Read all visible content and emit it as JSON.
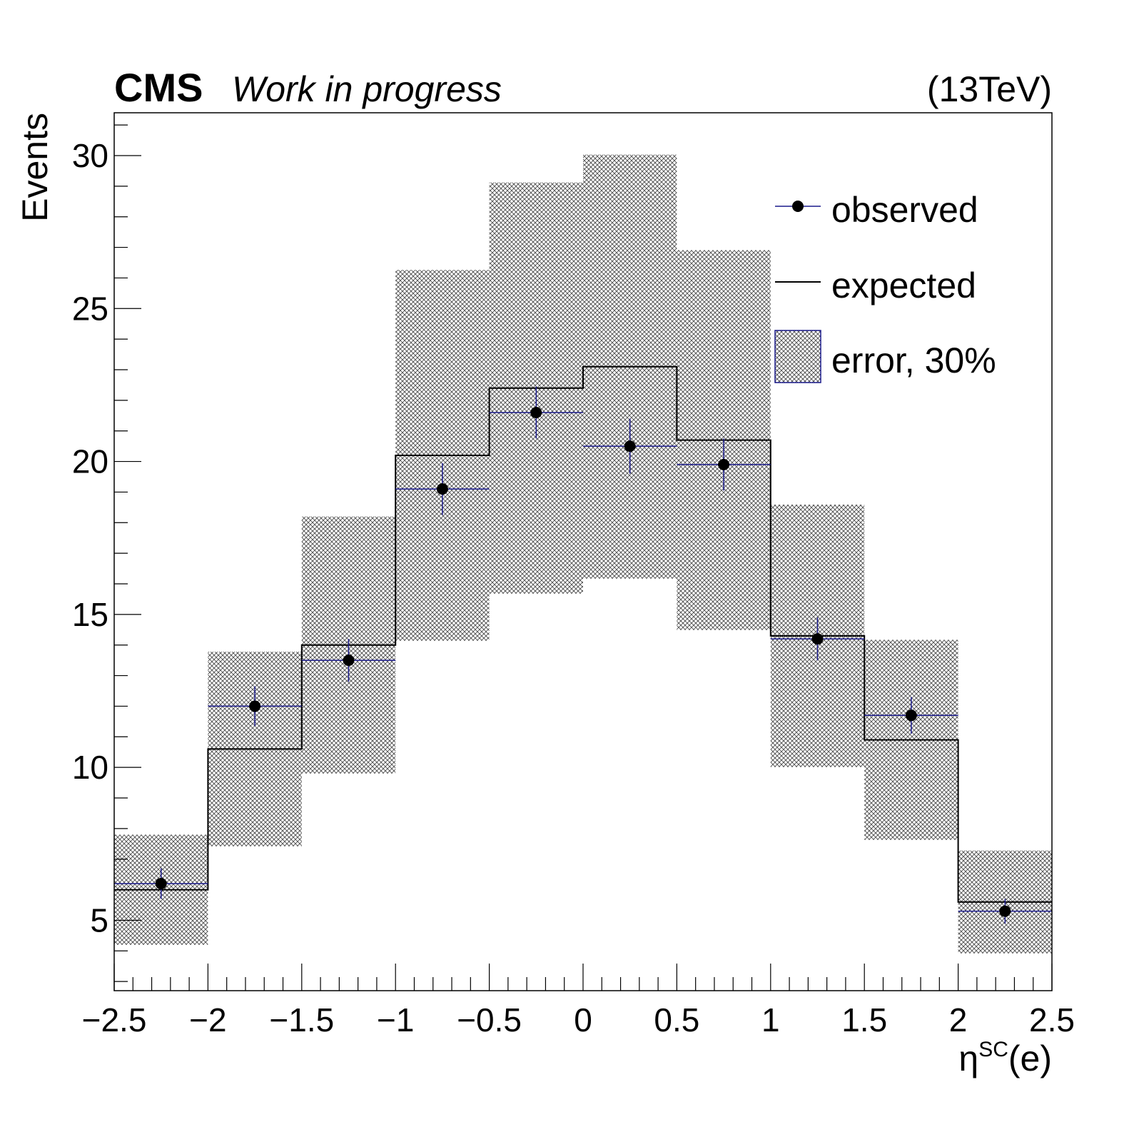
{
  "header": {
    "experiment": "CMS",
    "status": "Work in progress",
    "energy": "(13TeV)"
  },
  "chart_data": {
    "type": "bar",
    "xlabel": {
      "main": "η",
      "sup": "SC",
      "tail": "(e)"
    },
    "ylabel": "Events",
    "xlim": [
      -2.5,
      2.5
    ],
    "ylim": [
      2.7,
      31.4
    ],
    "x_ticks": [
      "−2.5",
      "−2",
      "−1.5",
      "−1",
      "−0.5",
      "0",
      "0.5",
      "1",
      "1.5",
      "2",
      "2.5"
    ],
    "y_ticks": [
      "5",
      "10",
      "15",
      "20",
      "25",
      "30"
    ],
    "bin_edges": [
      -2.5,
      -2.0,
      -1.5,
      -1.0,
      -0.5,
      0.0,
      0.5,
      1.0,
      1.5,
      2.0,
      2.5
    ],
    "expected": [
      6.0,
      10.6,
      14.0,
      20.2,
      22.4,
      23.1,
      20.7,
      14.3,
      10.9,
      5.6
    ],
    "error_fraction": 0.3,
    "observed": [
      6.2,
      12.0,
      13.5,
      19.1,
      21.6,
      20.5,
      19.9,
      14.2,
      11.7,
      5.3
    ],
    "observed_err": [
      0.5,
      0.65,
      0.7,
      0.85,
      0.85,
      0.9,
      0.85,
      0.7,
      0.6,
      0.4
    ],
    "legend": {
      "position": "top-right",
      "entries": [
        {
          "label": "observed"
        },
        {
          "label": "expected"
        },
        {
          "label": "error, 30%"
        }
      ]
    },
    "colors": {
      "observed_bar": "#1a1a8c",
      "marker": "#000000",
      "expected": "#000000",
      "band": "#555555"
    }
  }
}
